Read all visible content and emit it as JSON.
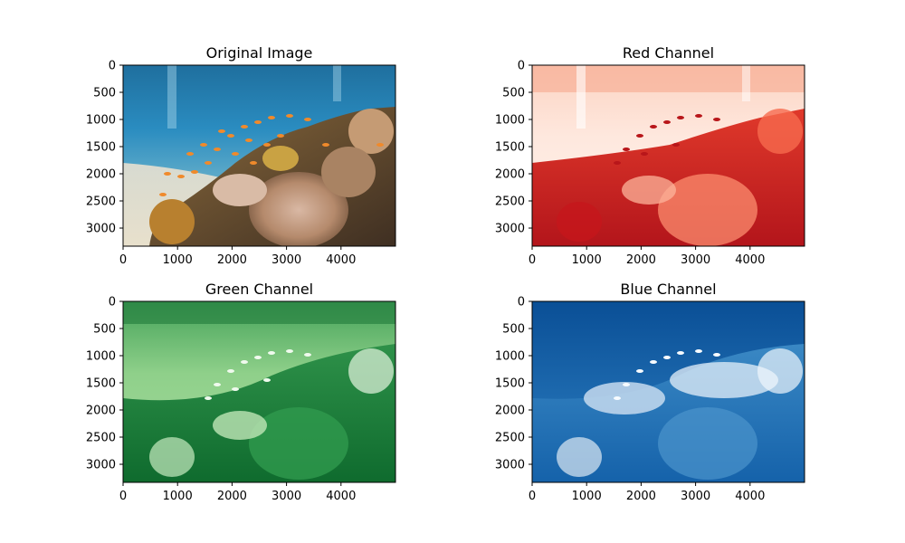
{
  "chart_data": [
    {
      "type": "image",
      "title": "Original Image",
      "content": "photo",
      "xlim": [
        0,
        5000
      ],
      "ylim": [
        3333,
        0
      ],
      "xticks": [
        0,
        1000,
        2000,
        3000,
        4000
      ],
      "yticks": [
        0,
        500,
        1000,
        1500,
        2000,
        2500,
        3000
      ],
      "grid": false
    },
    {
      "type": "image",
      "title": "Red Channel",
      "colormap": "Reds",
      "colors": [
        "#fff5f0",
        "#fcbba1",
        "#fb6a4a",
        "#cb181d",
        "#67000d"
      ],
      "xlim": [
        0,
        5000
      ],
      "ylim": [
        3333,
        0
      ],
      "xticks": [
        0,
        1000,
        2000,
        3000,
        4000
      ],
      "yticks": [
        0,
        500,
        1000,
        1500,
        2000,
        2500,
        3000
      ],
      "grid": false
    },
    {
      "type": "image",
      "title": "Green Channel",
      "colormap": "Greens",
      "colors": [
        "#f7fcf5",
        "#c7e9c0",
        "#74c476",
        "#238b45",
        "#00441b"
      ],
      "xlim": [
        0,
        5000
      ],
      "ylim": [
        3333,
        0
      ],
      "xticks": [
        0,
        1000,
        2000,
        3000,
        4000
      ],
      "yticks": [
        0,
        500,
        1000,
        1500,
        2000,
        2500,
        3000
      ],
      "grid": false
    },
    {
      "type": "image",
      "title": "Blue Channel",
      "colormap": "Blues",
      "colors": [
        "#f7fbff",
        "#c6dbef",
        "#6baed6",
        "#2171b5",
        "#08306b"
      ],
      "xlim": [
        0,
        5000
      ],
      "ylim": [
        3333,
        0
      ],
      "xticks": [
        0,
        1000,
        2000,
        3000,
        4000
      ],
      "yticks": [
        0,
        500,
        1000,
        1500,
        2000,
        2500,
        3000
      ],
      "grid": false
    }
  ]
}
